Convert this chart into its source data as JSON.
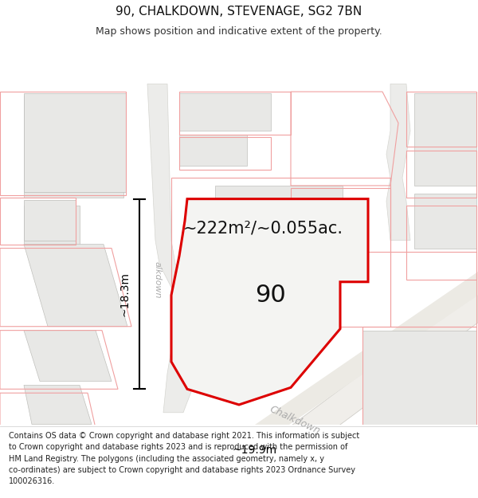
{
  "title": "90, CHALKDOWN, STEVENAGE, SG2 7BN",
  "subtitle": "Map shows position and indicative extent of the property.",
  "area_label": "~222m²/~0.055ac.",
  "property_number": "90",
  "dim_width": "~19.9m",
  "dim_height": "~18.3m",
  "road_label_diag": "Chalkdown",
  "road_label_vert": "alkdown",
  "footer_text": "Contains OS data © Crown copyright and database right 2021. This information is subject\nto Crown copyright and database rights 2023 and is reproduced with the permission of\nHM Land Registry. The polygons (including the associated geometry, namely x, y\nco-ordinates) are subject to Crown copyright and database rights 2023 Ordnance Survey\n100026316.",
  "map_bg": "#ffffff",
  "property_fill": "#f0f0ee",
  "property_edge": "#dd0000",
  "other_outline": "#f0a0a0",
  "building_fill": "#e8e8e6",
  "road_label_color": "#aaaaaa",
  "title_size": 11,
  "subtitle_size": 9,
  "footer_size": 7
}
